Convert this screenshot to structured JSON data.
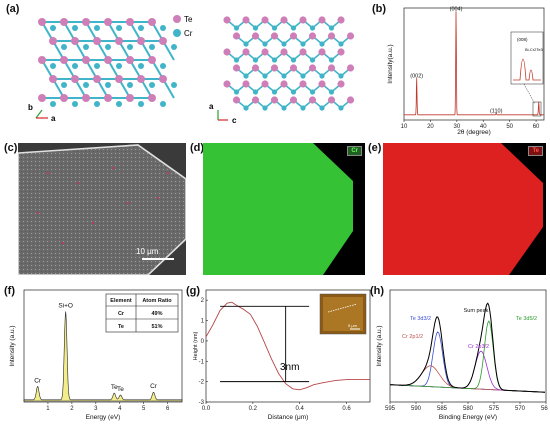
{
  "figure": {
    "panel_a": {
      "label": "(a)",
      "legend": [
        {
          "element": "Te",
          "color": "#cf7fb8"
        },
        {
          "element": "Cr",
          "color": "#40b5c9"
        }
      ],
      "axes_left": {
        "b": "b",
        "a": "a"
      },
      "axes_right": {
        "a": "a",
        "c": "c"
      }
    },
    "panel_b": {
      "label": "(b)"
    },
    "panel_c": {
      "label": "(c)",
      "scalebar": "10 μm"
    },
    "panel_d": {
      "label": "(d)",
      "element": "Cr"
    },
    "panel_e": {
      "label": "(e)",
      "element": "Te"
    },
    "panel_f": {
      "label": "(f)"
    },
    "panel_g": {
      "label": "(g)",
      "step_label": "3nm",
      "inset_scalebar": "5 μm"
    },
    "panel_h": {
      "label": "(h)"
    }
  },
  "chart_data": [
    {
      "id": "xrd",
      "type": "line",
      "xlabel": "2θ (degree)",
      "ylabel": "Intensity(a.u.)",
      "xlim": [
        10,
        63
      ],
      "xticks": [
        10,
        20,
        30,
        40,
        50,
        60
      ],
      "color": "#c0392b",
      "peaks": [
        {
          "x": 14.8,
          "height": 0.34,
          "label": "(002)"
        },
        {
          "x": 29.7,
          "height": 0.96,
          "label": "(004)"
        },
        {
          "x": 44.9,
          "height": 0.015,
          "label": "(110)"
        },
        {
          "x": 61.0,
          "height": 0.12,
          "label": ""
        }
      ],
      "inset": {
        "labels": [
          "(008)",
          "Bi-Cr2Te3"
        ]
      }
    },
    {
      "id": "eds",
      "type": "area",
      "xlabel": "Energy (eV)",
      "ylabel": "Intensity (a.u.)",
      "xlim": [
        0,
        6.6
      ],
      "xticks": [
        1,
        2,
        3,
        4,
        5,
        6
      ],
      "fill": "#f2ec8a",
      "peaks": [
        {
          "x": 0.57,
          "height": 0.14,
          "label": "Cr"
        },
        {
          "x": 1.74,
          "height": 0.92,
          "label": "Si+O"
        },
        {
          "x": 3.77,
          "height": 0.07,
          "label": "Te"
        },
        {
          "x": 4.03,
          "height": 0.05,
          "label": "Te"
        },
        {
          "x": 5.41,
          "height": 0.08,
          "label": "Cr"
        }
      ],
      "table": {
        "headers": [
          "Element",
          "Atom Ratio"
        ],
        "rows": [
          [
            "Cr",
            "49%"
          ],
          [
            "Te",
            "51%"
          ]
        ]
      }
    },
    {
      "id": "afm",
      "type": "line",
      "xlabel": "Distance (μm)",
      "ylabel": "Height (nm)",
      "xlim": [
        0,
        0.7
      ],
      "ylim": [
        -3,
        2.5
      ],
      "xticks": [
        0.0,
        0.2,
        0.4,
        0.6
      ],
      "yticks": [
        -3,
        -2,
        -1,
        0,
        1,
        2
      ],
      "color": "#b5474b",
      "x": [
        0.0,
        0.03,
        0.06,
        0.09,
        0.11,
        0.13,
        0.16,
        0.19,
        0.22,
        0.25,
        0.28,
        0.31,
        0.34,
        0.37,
        0.4,
        0.43,
        0.46,
        0.5,
        0.55,
        0.6,
        0.65,
        0.7
      ],
      "y": [
        0.2,
        0.8,
        1.5,
        1.85,
        1.9,
        1.75,
        1.55,
        1.3,
        0.7,
        -0.1,
        -0.9,
        -1.6,
        -2.1,
        -2.35,
        -2.4,
        -2.3,
        -2.15,
        -2.05,
        -1.95,
        -1.9,
        -1.9,
        -1.9
      ]
    },
    {
      "id": "xps",
      "type": "line",
      "xlabel": "Binding Energy (eV)",
      "ylabel": "Intensity (a.u.)",
      "xlim": [
        595,
        565
      ],
      "xticks": [
        595,
        590,
        585,
        580,
        575,
        570,
        565
      ],
      "series": [
        {
          "name": "Sum peak",
          "color": "#000000"
        },
        {
          "name": "Te 3d3/2",
          "color": "#3a4fd6"
        },
        {
          "name": "Cr 2p1/2",
          "color": "#c0504d"
        },
        {
          "name": "Cr 2p3/2",
          "color": "#9b30d0"
        },
        {
          "name": "Te 3d5/2",
          "color": "#2a9a2a"
        }
      ]
    }
  ]
}
